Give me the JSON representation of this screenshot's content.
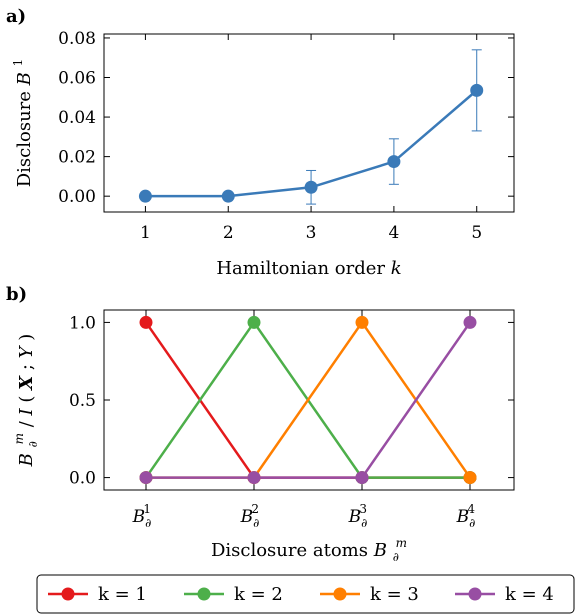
{
  "chart_data": [
    {
      "panel": "a)",
      "type": "line",
      "xlabel": "Hamiltonian order",
      "xlabel_var": "k",
      "ylabel": "Disclosure",
      "ylabel_var": "B",
      "ylabel_sup": "1",
      "x": [
        1,
        2,
        3,
        4,
        5
      ],
      "xticks": [
        "1",
        "2",
        "3",
        "4",
        "5"
      ],
      "xlim": [
        0.5,
        5.45
      ],
      "ylim": [
        -0.008,
        0.082
      ],
      "yticks": [
        0.0,
        0.02,
        0.04,
        0.06,
        0.08
      ],
      "ytick_labels": [
        "0.00",
        "0.02",
        "0.04",
        "0.06",
        "0.08"
      ],
      "series": [
        {
          "values": [
            0.0,
            0.0,
            0.0045,
            0.0175,
            0.0535
          ],
          "error": [
            0.0,
            0.0,
            0.0085,
            0.0115,
            0.0205
          ],
          "color": "#3a7ab8"
        }
      ],
      "grid": false
    },
    {
      "panel": "b)",
      "type": "line",
      "xlabel": "Disclosure atoms",
      "xlabel_var": "B",
      "xlabel_sub": "∂",
      "xlabel_sup": "m",
      "ylabel_parts": [
        "B",
        "∂",
        "m",
        "/",
        "I",
        "(",
        "X",
        "; ",
        "Y",
        ")"
      ],
      "categories": [
        "1",
        "2",
        "3",
        "4"
      ],
      "xtick_var": "B",
      "xtick_sub": "∂",
      "ylim": [
        -0.08,
        1.08
      ],
      "yticks": [
        0.0,
        0.5,
        1.0
      ],
      "ytick_labels": [
        "0.0",
        "0.5",
        "1.0"
      ],
      "series": [
        {
          "name": "k = 1",
          "values": [
            1,
            0,
            0,
            0
          ],
          "color": "#e41a1c"
        },
        {
          "name": "k = 2",
          "values": [
            0,
            1,
            0,
            0
          ],
          "color": "#4daf4a"
        },
        {
          "name": "k = 3",
          "values": [
            0,
            0,
            1,
            0
          ],
          "color": "#ff7f00"
        },
        {
          "name": "k = 4",
          "values": [
            0,
            0,
            0,
            1
          ],
          "color": "#984ea3"
        }
      ],
      "legend": "bottom",
      "grid": false
    }
  ]
}
